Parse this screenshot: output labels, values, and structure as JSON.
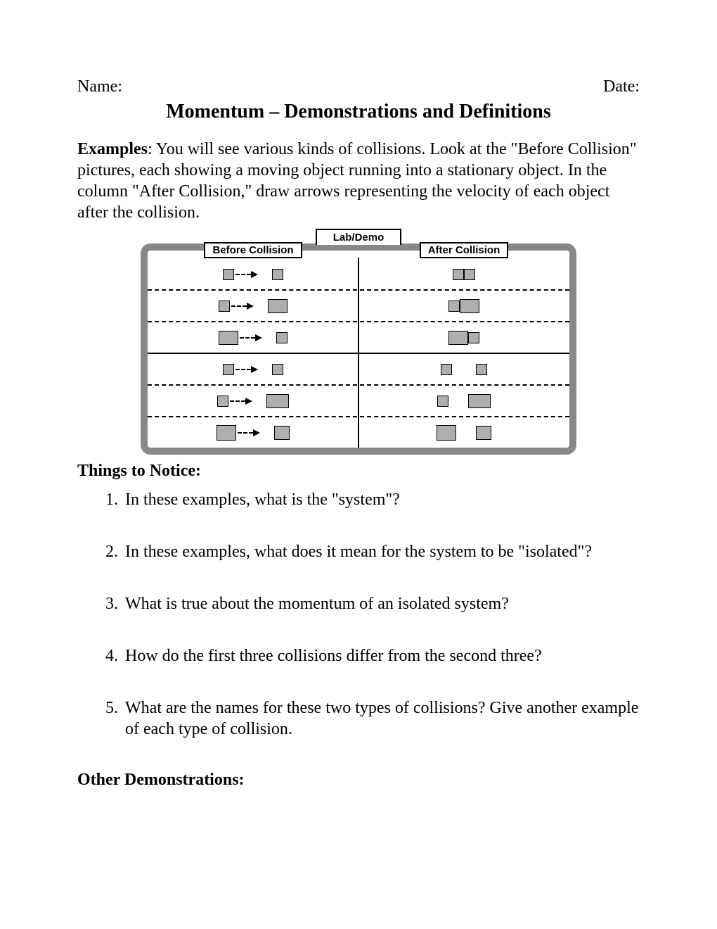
{
  "header": {
    "name_label": "Name:",
    "date_label": "Date:"
  },
  "title": "Momentum – Demonstrations and Definitions",
  "examples": {
    "label": "Examples",
    "text": ": You will see various kinds of collisions. Look at the \"Before Collision\" pictures, each showing a moving object running into a stationary object. In the column \"After Collision,\" draw arrows representing the velocity of each object after the collision."
  },
  "diagram": {
    "tab": "Lab/Demo",
    "before_header": "Before Collision",
    "after_header": "After Collision",
    "rows": [
      {
        "border": "dashed",
        "before": {
          "b1": [
            14,
            14
          ],
          "arrow": true,
          "b2": [
            14,
            14
          ],
          "gap": 14
        },
        "after": {
          "b1": [
            14,
            14
          ],
          "b2": [
            14,
            14
          ],
          "gap": 0
        }
      },
      {
        "border": "dashed",
        "before": {
          "b1": [
            14,
            14
          ],
          "arrow": true,
          "b2": [
            26,
            18
          ],
          "gap": 14
        },
        "after": {
          "b1": [
            14,
            14
          ],
          "b2": [
            26,
            18
          ],
          "gap": 0
        }
      },
      {
        "border": "solid",
        "before": {
          "b1": [
            26,
            18
          ],
          "arrow": true,
          "b2": [
            14,
            14
          ],
          "gap": 14
        },
        "after": {
          "b1": [
            26,
            18
          ],
          "b2": [
            14,
            14
          ],
          "gap": 0
        }
      },
      {
        "border": "dashed",
        "before": {
          "b1": [
            14,
            14
          ],
          "arrow": true,
          "b2": [
            14,
            14
          ],
          "gap": 14
        },
        "after": {
          "b1": [
            14,
            14
          ],
          "b2": [
            14,
            14
          ],
          "gap": 34
        }
      },
      {
        "border": "dashed",
        "before": {
          "b1": [
            14,
            14
          ],
          "arrow": true,
          "b2": [
            30,
            18
          ],
          "gap": 14
        },
        "after": {
          "b1": [
            14,
            14
          ],
          "b2": [
            30,
            18
          ],
          "gap": 28
        }
      },
      {
        "border": "none",
        "before": {
          "b1": [
            26,
            20
          ],
          "arrow": true,
          "b2": [
            20,
            18
          ],
          "gap": 14
        },
        "after": {
          "b1": [
            26,
            20
          ],
          "b2": [
            20,
            18
          ],
          "gap": 28
        }
      }
    ]
  },
  "notice_label": "Things to Notice:",
  "questions": [
    "In these examples, what is the \"system\"?",
    "In these examples, what does it mean for the system to be \"isolated\"?",
    "What is true about the momentum of an isolated system?",
    "How do the first three collisions differ from the second three?",
    "What are the names for these two types of collisions? Give another example of each type of collision."
  ],
  "other_label": "Other Demonstrations:"
}
